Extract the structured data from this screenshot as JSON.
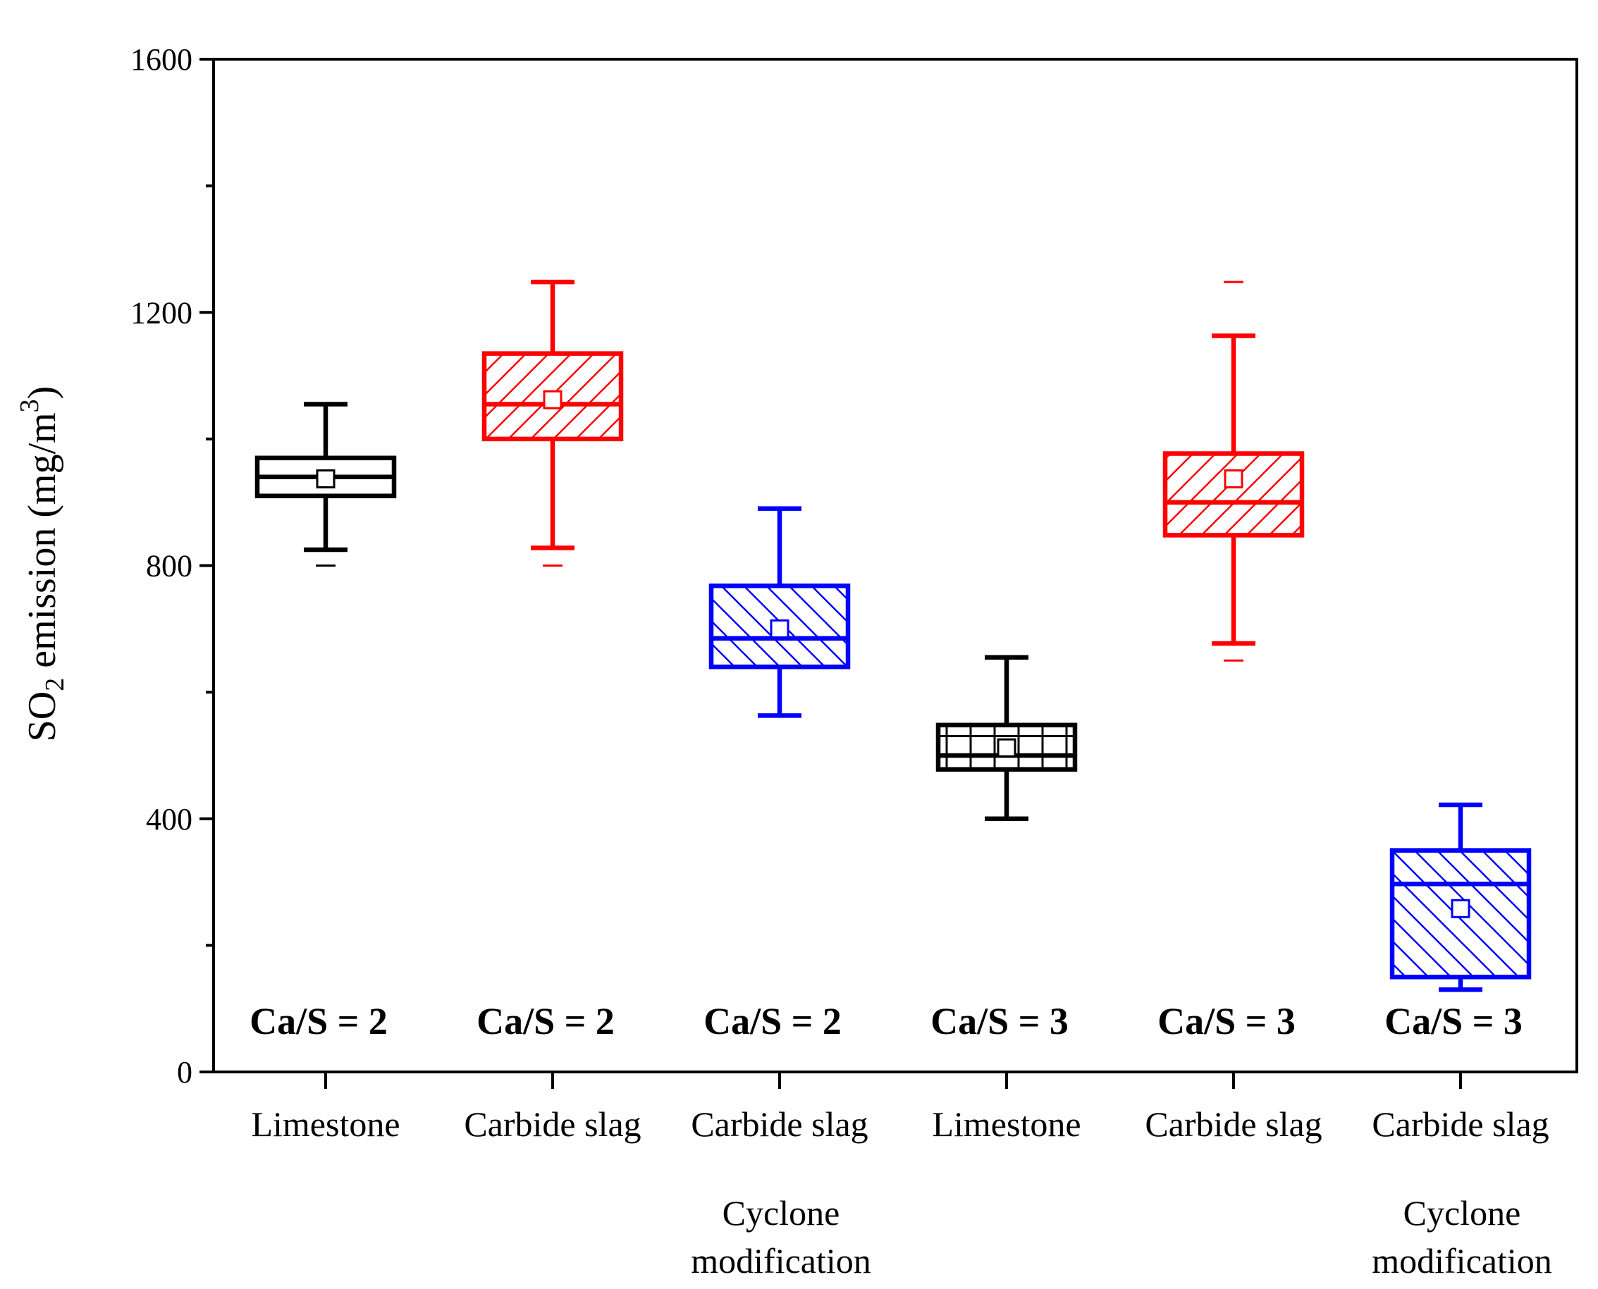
{
  "chart_data": {
    "type": "box",
    "ylabel": "SO2 emission (mg/m3)",
    "ylabel_parts": {
      "base": "SO",
      "sub": "2",
      "mid": " emission (mg/m",
      "sup": "3",
      "end": ")"
    },
    "ylim": [
      0,
      1600
    ],
    "yticks": [
      "0",
      "400",
      "800",
      "1200",
      "1600"
    ],
    "grid": false,
    "legend": "none",
    "categories": [
      {
        "label": [
          "Limestone"
        ],
        "group_label": "Ca/S = 2"
      },
      {
        "label": [
          "Carbide slag"
        ],
        "group_label": "Ca/S = 2"
      },
      {
        "label": [
          "Carbide slag",
          "Cyclone",
          "modification"
        ],
        "group_label": "Ca/S = 2"
      },
      {
        "label": [
          "Limestone"
        ],
        "group_label": "Ca/S = 3"
      },
      {
        "label": [
          "Carbide slag"
        ],
        "group_label": "Ca/S = 3"
      },
      {
        "label": [
          "Carbide slag",
          "Cyclone",
          "modification"
        ],
        "group_label": "Ca/S = 3"
      }
    ],
    "boxes": [
      {
        "color": "#000000",
        "pattern": "none",
        "whisker_low": 825,
        "q1": 910,
        "median": 940,
        "q3": 970,
        "whisker_high": 1055,
        "mean": 937,
        "outliers": [
          800
        ]
      },
      {
        "color": "#ff0000",
        "pattern": "diag-up",
        "whisker_low": 828,
        "q1": 1000,
        "median": 1055,
        "q3": 1135,
        "whisker_high": 1248,
        "mean": 1062,
        "outliers": [
          800
        ]
      },
      {
        "color": "#0000ff",
        "pattern": "diag-down",
        "whisker_low": 563,
        "q1": 640,
        "median": 685,
        "q3": 768,
        "whisker_high": 890,
        "mean": 700,
        "outliers": []
      },
      {
        "color": "#000000",
        "pattern": "grid",
        "whisker_low": 400,
        "q1": 478,
        "median": 500,
        "q3": 548,
        "whisker_high": 655,
        "mean": 512,
        "outliers": []
      },
      {
        "color": "#ff0000",
        "pattern": "diag-up",
        "whisker_low": 677,
        "q1": 848,
        "median": 900,
        "q3": 977,
        "whisker_high": 1163,
        "mean": 937,
        "outliers": [
          650,
          1248
        ]
      },
      {
        "color": "#0000ff",
        "pattern": "diag-down",
        "whisker_low": 130,
        "q1": 150,
        "median": 297,
        "q3": 350,
        "whisker_high": 422,
        "mean": 258,
        "outliers": []
      }
    ]
  }
}
